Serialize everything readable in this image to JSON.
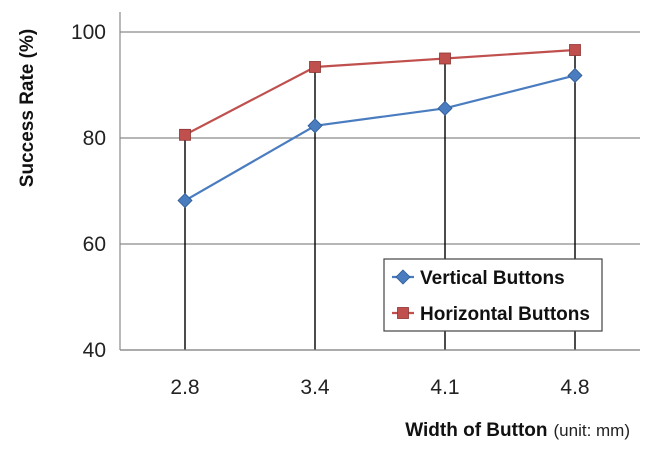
{
  "chart_data": {
    "type": "line",
    "categories": [
      "2.8",
      "3.4",
      "4.1",
      "4.8"
    ],
    "series": [
      {
        "name": "Vertical Buttons",
        "values": [
          68.2,
          82.3,
          85.6,
          91.8
        ],
        "color": "#4a7cc0",
        "marker": "diamond"
      },
      {
        "name": "Horizontal Buttons",
        "values": [
          80.6,
          93.4,
          95.0,
          96.6
        ],
        "color": "#c0504d",
        "marker": "square"
      }
    ],
    "xlabel": "Width of Button",
    "xlabel_unit": "(unit: mm)",
    "ylabel": "Success Rate (%)",
    "ylim": [
      40,
      100
    ],
    "yticks": [
      "40",
      "60",
      "80",
      "100"
    ],
    "grid": "horizontal",
    "drop_lines": true,
    "legend_position": "bottom-right"
  }
}
